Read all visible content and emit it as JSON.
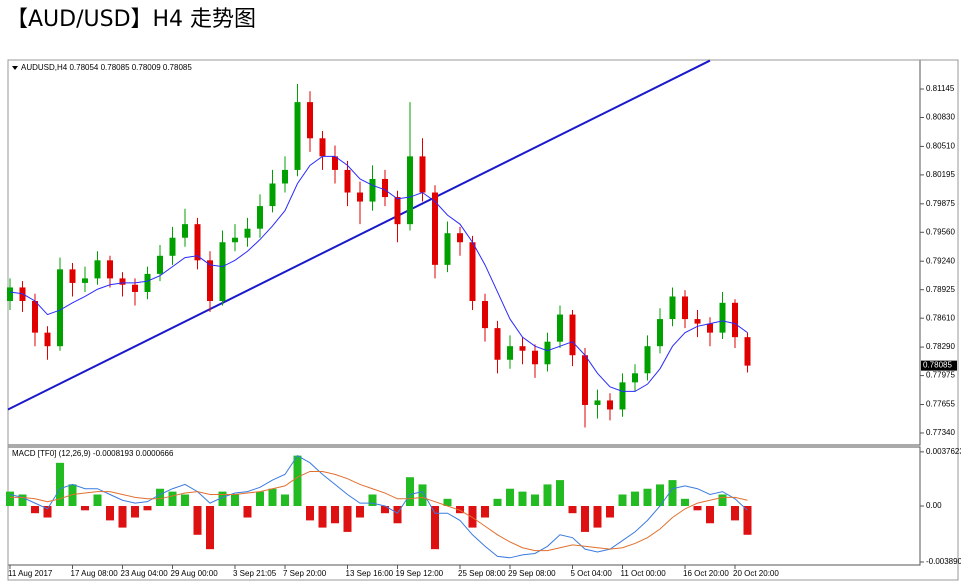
{
  "chart_data": [
    {
      "type": "candlestick",
      "title": "【AUD/USD】H4 走势图",
      "header": "AUDUSD,H4  0.78054 0.78085 0.78009 0.78085",
      "categories": [
        "11 Aug 2017",
        null,
        null,
        null,
        null,
        "17 Aug 08:00",
        null,
        null,
        null,
        "23 Aug 04:00",
        null,
        null,
        null,
        "29 Aug 00:00",
        null,
        null,
        null,
        null,
        "3 Sep 21:05",
        null,
        null,
        null,
        "7 Sep 20:00",
        null,
        null,
        null,
        null,
        "13 Sep 16:00",
        null,
        null,
        null,
        "19 Sep 12:00",
        null,
        null,
        null,
        null,
        "25 Sep 08:00",
        null,
        null,
        null,
        "29 Sep 08:00",
        null,
        null,
        null,
        null,
        "5 Oct 04:00",
        null,
        null,
        null,
        "11 Oct 00:00",
        null,
        null,
        null,
        null,
        "16 Oct 20:00",
        null,
        null,
        null,
        "20 Oct 20:00",
        null
      ],
      "open": [
        0.788,
        0.7895,
        0.788,
        0.7845,
        0.783,
        0.7915,
        0.79,
        0.7905,
        0.7925,
        0.7905,
        0.7898,
        0.789,
        0.791,
        0.793,
        0.795,
        0.7965,
        0.7925,
        0.788,
        0.7945,
        0.795,
        0.796,
        0.7985,
        0.801,
        0.8025,
        0.81,
        0.806,
        0.804,
        0.8025,
        0.8,
        0.799,
        0.8015,
        0.7995,
        0.7965,
        0.804,
        0.8,
        0.792,
        0.7955,
        0.7945,
        0.788,
        0.785,
        0.7815,
        0.783,
        0.7825,
        0.781,
        0.7835,
        0.7865,
        0.782,
        0.7765,
        0.777,
        0.776,
        0.779,
        0.78,
        0.783,
        0.786,
        0.7885,
        0.786,
        0.7855,
        0.7845,
        0.7878,
        0.784
      ],
      "high": [
        0.7905,
        0.7902,
        0.7888,
        0.7852,
        0.7928,
        0.7922,
        0.7918,
        0.7935,
        0.793,
        0.7912,
        0.7905,
        0.7918,
        0.7942,
        0.7962,
        0.7982,
        0.7972,
        0.7935,
        0.7958,
        0.7965,
        0.7972,
        0.7998,
        0.8025,
        0.804,
        0.812,
        0.8112,
        0.8068,
        0.8052,
        0.8035,
        0.8012,
        0.803,
        0.8025,
        0.8002,
        0.81,
        0.806,
        0.8008,
        0.7968,
        0.7962,
        0.7952,
        0.7888,
        0.7858,
        0.7842,
        0.784,
        0.7832,
        0.7845,
        0.7875,
        0.787,
        0.7828,
        0.7782,
        0.7778,
        0.78,
        0.781,
        0.7842,
        0.7872,
        0.7895,
        0.7892,
        0.787,
        0.7862,
        0.789,
        0.7882,
        0.7845
      ],
      "low": [
        0.787,
        0.7868,
        0.783,
        0.7815,
        0.7825,
        0.7885,
        0.789,
        0.7898,
        0.7895,
        0.7885,
        0.7875,
        0.7882,
        0.7902,
        0.792,
        0.794,
        0.7915,
        0.7868,
        0.7875,
        0.7935,
        0.794,
        0.795,
        0.7978,
        0.8,
        0.8018,
        0.8045,
        0.8025,
        0.801,
        0.7985,
        0.7965,
        0.798,
        0.7985,
        0.7945,
        0.7958,
        0.799,
        0.7905,
        0.7912,
        0.793,
        0.787,
        0.7835,
        0.78,
        0.7805,
        0.781,
        0.7795,
        0.7802,
        0.7828,
        0.7808,
        0.774,
        0.775,
        0.7748,
        0.7752,
        0.778,
        0.7792,
        0.7822,
        0.7852,
        0.785,
        0.784,
        0.783,
        0.7838,
        0.7828,
        0.78009
      ],
      "close": [
        0.7895,
        0.788,
        0.7845,
        0.783,
        0.7915,
        0.79,
        0.7905,
        0.7925,
        0.7905,
        0.7898,
        0.789,
        0.791,
        0.793,
        0.795,
        0.7965,
        0.7925,
        0.788,
        0.7945,
        0.795,
        0.796,
        0.7985,
        0.801,
        0.8025,
        0.81,
        0.806,
        0.804,
        0.8025,
        0.8,
        0.799,
        0.8015,
        0.7995,
        0.7965,
        0.804,
        0.8,
        0.792,
        0.7955,
        0.7945,
        0.788,
        0.785,
        0.7815,
        0.783,
        0.7825,
        0.781,
        0.7835,
        0.7865,
        0.782,
        0.7765,
        0.777,
        0.776,
        0.779,
        0.78,
        0.783,
        0.786,
        0.7885,
        0.786,
        0.7855,
        0.7845,
        0.7878,
        0.784,
        0.78085
      ],
      "ma": [
        0.789,
        0.7888,
        0.788,
        0.7865,
        0.787,
        0.7878,
        0.7885,
        0.7893,
        0.7898,
        0.79,
        0.79,
        0.7902,
        0.7908,
        0.7918,
        0.7928,
        0.793,
        0.792,
        0.7918,
        0.7925,
        0.7935,
        0.7948,
        0.7963,
        0.798,
        0.801,
        0.803,
        0.804,
        0.804,
        0.803,
        0.8015,
        0.8008,
        0.8003,
        0.7993,
        0.7995,
        0.8,
        0.799,
        0.7975,
        0.7965,
        0.7945,
        0.792,
        0.789,
        0.786,
        0.784,
        0.783,
        0.7825,
        0.783,
        0.7835,
        0.782,
        0.78,
        0.7785,
        0.778,
        0.778,
        0.7788,
        0.7805,
        0.783,
        0.7845,
        0.7852,
        0.7855,
        0.7858,
        0.7855,
        0.7845
      ],
      "trendline": {
        "x": [
          0,
          56
        ],
        "y": [
          0.776,
          0.8146
        ]
      },
      "up_color": "#00a000",
      "down_color": "#e00000",
      "ma_color": "#2a2aff",
      "trendline_color": "#1a1acc",
      "ylim": [
        0.77207,
        0.81466
      ],
      "yticks": [
        0.81145,
        {
          "value": 0.8083,
          "label": "0.80830"
        },
        {
          "value": 0.8051,
          "label": "0.80510"
        },
        0.80195,
        0.79875,
        {
          "value": 0.7956,
          "label": "0.79560"
        },
        {
          "value": 0.7924,
          "label": "0.79240"
        },
        0.78925,
        {
          "value": 0.7861,
          "label": "0.78610"
        },
        {
          "value": 0.7829,
          "label": "0.78290"
        },
        0.77975,
        0.77655,
        {
          "value": 0.7734,
          "label": "0.77340"
        }
      ]
    },
    {
      "type": "macd",
      "header": "MACD [TF0] (12,26,9) -0.0008193 0.0000666",
      "histogram": [
        0.001,
        0.0008,
        -0.0005,
        -0.0008,
        0.003,
        0.0015,
        -0.0003,
        0.0008,
        -0.001,
        -0.0015,
        -0.0008,
        -0.0003,
        0.0012,
        0.001,
        0.0008,
        -0.002,
        -0.003,
        0.001,
        0.0008,
        -0.0008,
        0.001,
        0.0012,
        0.0008,
        0.0035,
        -0.001,
        -0.0015,
        -0.0012,
        -0.0018,
        -0.0008,
        0.0008,
        -0.0005,
        -0.0012,
        0.002,
        0.0015,
        -0.003,
        0.0005,
        -0.0005,
        -0.0015,
        -0.0008,
        0.0005,
        0.0012,
        0.001,
        0.0008,
        0.0015,
        0.0018,
        -0.0005,
        -0.0018,
        -0.0015,
        -0.0008,
        0.0008,
        0.001,
        0.0012,
        0.0015,
        0.0018,
        0.0005,
        -0.0003,
        -0.0012,
        0.0008,
        -0.001,
        -0.002
      ],
      "series": [
        {
          "color": "#3a7be0",
          "values": [
            0.0008,
            0.0006,
            0.0002,
            -0.0002,
            0.0012,
            0.0015,
            0.0012,
            0.0012,
            0.0008,
            0.0004,
            0.0002,
            0.0003,
            0.0008,
            0.0012,
            0.0015,
            0.001,
            0.0002,
            0.0006,
            0.0009,
            0.001,
            0.0013,
            0.0018,
            0.0022,
            0.0035,
            0.003,
            0.0022,
            0.0015,
            0.0008,
            0.0002,
            0.0002,
            0.0,
            -0.0005,
            0.0008,
            0.001,
            -0.0005,
            -0.0005,
            -0.001,
            -0.002,
            -0.0028,
            -0.0035,
            -0.0036,
            -0.0034,
            -0.0033,
            -0.0028,
            -0.002,
            -0.0022,
            -0.003,
            -0.0032,
            -0.003,
            -0.0024,
            -0.0018,
            -0.001,
            0.0,
            0.0012,
            0.0014,
            0.0012,
            0.0008,
            0.001,
            0.0005,
            -0.0003
          ]
        },
        {
          "color": "#e07030",
          "values": [
            0.0006,
            0.0006,
            0.0005,
            0.0003,
            0.0005,
            0.0008,
            0.0009,
            0.001,
            0.001,
            0.0008,
            0.0006,
            0.0005,
            0.0005,
            0.0007,
            0.0009,
            0.001,
            0.0008,
            0.0008,
            0.0008,
            0.0009,
            0.001,
            0.0012,
            0.0014,
            0.002,
            0.0024,
            0.0024,
            0.0022,
            0.0019,
            0.0015,
            0.0012,
            0.0009,
            0.0005,
            0.0005,
            0.0006,
            0.0003,
            0.0,
            -0.0003,
            -0.0008,
            -0.0014,
            -0.002,
            -0.0025,
            -0.0029,
            -0.0031,
            -0.0031,
            -0.0029,
            -0.0027,
            -0.0028,
            -0.0029,
            -0.003,
            -0.0029,
            -0.0026,
            -0.0022,
            -0.0016,
            -0.0008,
            -0.0002,
            0.0002,
            0.0004,
            0.0006,
            0.0006,
            0.0004
          ]
        }
      ],
      "up_color": "#22bb22",
      "down_color": "#dd1111",
      "ylim": [
        -0.0041,
        0.0041
      ],
      "yticks": [
        0.0037623,
        {
          "value": 0,
          "label": "0.00"
        },
        {
          "value": -0.00389,
          "label": "-0.003890"
        }
      ]
    }
  ]
}
